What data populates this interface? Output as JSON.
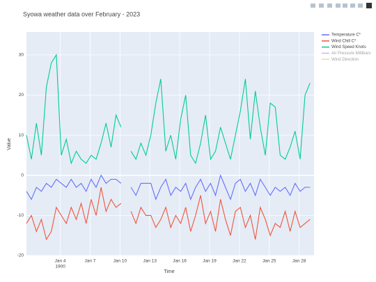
{
  "chart_data": {
    "type": "line",
    "title": "Syowa weather data over February - 2023",
    "x_label": "Time",
    "y_label": "Value",
    "x": [
      0.6,
      1.1,
      1.6,
      2.1,
      2.6,
      3.1,
      3.6,
      4.1,
      4.6,
      5.1,
      5.6,
      6.1,
      6.6,
      7.1,
      7.6,
      8.1,
      8.6,
      9.1,
      9.6,
      10.1,
      10.6,
      11.1,
      11.6,
      12.1,
      12.6,
      13.1,
      13.6,
      14.1,
      14.6,
      15.1,
      15.6,
      16.1,
      16.6,
      17.1,
      17.6,
      18.1,
      18.6,
      19.1,
      19.6,
      20.1,
      20.6,
      21.1,
      21.6,
      22.1,
      22.6,
      23.1,
      23.6,
      24.1,
      24.6,
      25.1,
      25.6,
      26.1,
      26.6,
      27.1,
      27.6,
      28.1,
      28.6,
      29.1
    ],
    "xlim": [
      0.6,
      29.5
    ],
    "xticks": [
      {
        "value": 4,
        "label": "Jan 4"
      },
      {
        "value": 7,
        "label": "Jan 7"
      },
      {
        "value": 10,
        "label": "Jan 10"
      },
      {
        "value": 13,
        "label": "Jan 13"
      },
      {
        "value": 16,
        "label": "Jan 16"
      },
      {
        "value": 19,
        "label": "Jan 19"
      },
      {
        "value": 22,
        "label": "Jan 22"
      },
      {
        "value": 25,
        "label": "Jan 25"
      },
      {
        "value": 28,
        "label": "Jan 28"
      }
    ],
    "x_year_label": "1900",
    "ylim": [
      -20,
      35.7
    ],
    "yticks": [
      -20,
      -10,
      0,
      10,
      20,
      30
    ],
    "grid": true,
    "series": [
      {
        "name": "Temperature C*",
        "color": "#636efa",
        "visible": true,
        "values": [
          -4,
          -6,
          -3,
          -4,
          -2,
          -3,
          -1,
          -2,
          -3,
          -1,
          -3,
          -2,
          -4,
          -1,
          -3,
          0,
          -2,
          -1,
          -1,
          -2,
          null,
          -3,
          -5,
          -2,
          -2,
          -2,
          -6,
          -3,
          -1,
          -5,
          -3,
          -4,
          -2,
          -6,
          -3,
          -1,
          -4,
          -2,
          -5,
          0,
          -3,
          -6,
          -2,
          -1,
          -4,
          -2,
          -5,
          -1,
          -3,
          -5,
          -3,
          -4,
          -3,
          -5,
          -2,
          -4,
          -3,
          -3
        ]
      },
      {
        "name": "Wind Chill C*",
        "color": "#ef553b",
        "visible": true,
        "values": [
          -12,
          -10,
          -14,
          -11,
          -16,
          -14,
          -8,
          -10,
          -12,
          -8,
          -11,
          -7,
          -12,
          -6,
          -10,
          -3,
          -9,
          -6,
          -8,
          -7,
          null,
          -9,
          -12,
          -8,
          -10,
          -10,
          -13,
          -11,
          -8,
          -13,
          -10,
          -12,
          -8,
          -14,
          -10,
          -5,
          -12,
          -9,
          -14,
          -6,
          -11,
          -15,
          -9,
          -8,
          -13,
          -10,
          -16,
          -8,
          -11,
          -15,
          -12,
          -13,
          -9,
          -14,
          -9,
          -13,
          -12,
          -11
        ]
      },
      {
        "name": "Wind Speed Knots",
        "color": "#00cc96",
        "visible": true,
        "values": [
          10,
          4,
          13,
          5,
          22,
          28,
          30,
          5,
          9,
          3,
          6,
          4,
          3,
          5,
          4,
          8,
          13,
          7,
          15,
          12,
          null,
          6,
          4,
          8,
          5,
          10,
          18,
          24,
          6,
          10,
          4,
          14,
          20,
          5,
          3,
          8,
          15,
          4,
          6,
          12,
          8,
          4,
          10,
          16,
          24,
          9,
          21,
          12,
          5,
          18,
          17,
          5,
          4,
          7,
          11,
          4,
          20,
          23
        ]
      },
      {
        "name": "Air Pressure Millibars",
        "color": "#ab63fa",
        "visible": false
      },
      {
        "name": "Wind Direction",
        "color": "#ffa15a",
        "visible": false
      }
    ]
  }
}
